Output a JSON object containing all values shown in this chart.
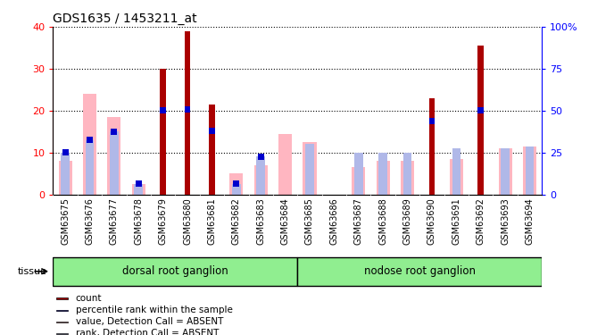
{
  "title": "GDS1635 / 1453211_at",
  "samples": [
    "GSM63675",
    "GSM63676",
    "GSM63677",
    "GSM63678",
    "GSM63679",
    "GSM63680",
    "GSM63681",
    "GSM63682",
    "GSM63683",
    "GSM63684",
    "GSM63685",
    "GSM63686",
    "GSM63687",
    "GSM63688",
    "GSM63689",
    "GSM63690",
    "GSM63691",
    "GSM63692",
    "GSM63693",
    "GSM63694"
  ],
  "count_values": [
    0,
    0,
    0,
    0,
    30,
    39,
    21.5,
    0,
    0,
    0,
    0,
    0,
    0,
    0,
    0,
    23,
    0,
    35.5,
    0,
    0
  ],
  "rank_values": [
    10,
    13,
    15,
    2.5,
    20,
    20.2,
    15.2,
    2.5,
    9,
    0,
    0,
    0,
    0,
    0,
    0,
    17.5,
    0,
    20,
    0,
    0
  ],
  "pink_values": [
    8,
    24,
    18.5,
    2.5,
    0,
    0,
    0,
    5,
    7,
    14.5,
    12.5,
    0,
    6.5,
    8,
    8,
    0,
    8.5,
    0,
    11,
    11.5
  ],
  "blue_rank_values": [
    10,
    13,
    15,
    2.5,
    0,
    0,
    0,
    2.5,
    9,
    0,
    12,
    0,
    10,
    10,
    10,
    0,
    11,
    0,
    11,
    11.5
  ],
  "tissue_groups": [
    {
      "label": "dorsal root ganglion",
      "start": 0,
      "end": 9
    },
    {
      "label": "nodose root ganglion",
      "start": 10,
      "end": 19
    }
  ],
  "left_ylim": [
    0,
    40
  ],
  "right_ylim": [
    0,
    100
  ],
  "left_yticks": [
    0,
    10,
    20,
    30,
    40
  ],
  "right_yticks": [
    0,
    25,
    50,
    75,
    100
  ],
  "right_yticklabels": [
    "0",
    "25",
    "50",
    "75",
    "100%"
  ],
  "count_color": "#aa0000",
  "rank_color": "#0000cc",
  "pink_color": "#ffb6c1",
  "blue_light_color": "#b0b8e8",
  "grid_color": "black",
  "background_plot": "#ffffff",
  "tissue_color": "#90EE90",
  "tissue_bg": "#d0d0d0"
}
